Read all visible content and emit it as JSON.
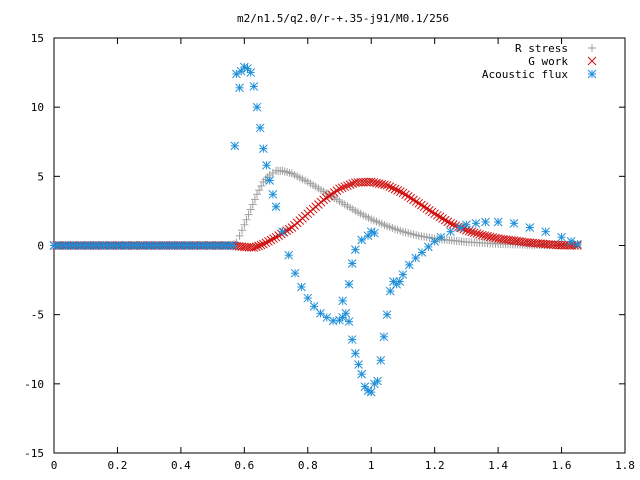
{
  "chart_data": {
    "type": "scatter",
    "title": "m2/n1.5/q2.0/r-+.35-j91/M0.1/256",
    "xlabel": "",
    "ylabel": "",
    "xlim": [
      0,
      1.8
    ],
    "ylim": [
      -15,
      15
    ],
    "grid": false,
    "legend_position": "top-right",
    "x_ticks": [
      "0",
      "0.2",
      "0.4",
      "0.6",
      "0.8",
      "1",
      "1.2",
      "1.4",
      "1.6",
      "1.8"
    ],
    "y_ticks": [
      "15",
      "10",
      "5",
      "0",
      "-5",
      "-10",
      "-15"
    ],
    "series": [
      {
        "name": "R stress",
        "marker": "plus",
        "color": "#a0a0a0",
        "points": [
          [
            0.0,
            0
          ],
          [
            0.56,
            0
          ],
          [
            0.575,
            0.2
          ],
          [
            0.585,
            0.7
          ],
          [
            0.6,
            1.5
          ],
          [
            0.62,
            2.6
          ],
          [
            0.64,
            3.7
          ],
          [
            0.66,
            4.6
          ],
          [
            0.68,
            5.1
          ],
          [
            0.7,
            5.4
          ],
          [
            0.72,
            5.4
          ],
          [
            0.75,
            5.2
          ],
          [
            0.8,
            4.6
          ],
          [
            0.85,
            3.9
          ],
          [
            0.9,
            3.2
          ],
          [
            0.95,
            2.5
          ],
          [
            1.0,
            1.9
          ],
          [
            1.05,
            1.4
          ],
          [
            1.1,
            1.0
          ],
          [
            1.15,
            0.7
          ],
          [
            1.2,
            0.5
          ],
          [
            1.3,
            0.25
          ],
          [
            1.4,
            0.12
          ],
          [
            1.5,
            0.05
          ],
          [
            1.6,
            0.02
          ],
          [
            1.65,
            0.01
          ]
        ]
      },
      {
        "name": "G work",
        "marker": "cross",
        "color": "#d01010",
        "points": [
          [
            0.0,
            0
          ],
          [
            0.56,
            0
          ],
          [
            0.6,
            -0.1
          ],
          [
            0.63,
            -0.15
          ],
          [
            0.66,
            0.1
          ],
          [
            0.7,
            0.6
          ],
          [
            0.75,
            1.3
          ],
          [
            0.8,
            2.3
          ],
          [
            0.85,
            3.3
          ],
          [
            0.9,
            4.1
          ],
          [
            0.95,
            4.55
          ],
          [
            1.0,
            4.6
          ],
          [
            1.05,
            4.35
          ],
          [
            1.1,
            3.8
          ],
          [
            1.15,
            3.05
          ],
          [
            1.2,
            2.3
          ],
          [
            1.25,
            1.6
          ],
          [
            1.3,
            1.1
          ],
          [
            1.35,
            0.75
          ],
          [
            1.4,
            0.5
          ],
          [
            1.45,
            0.35
          ],
          [
            1.5,
            0.2
          ],
          [
            1.55,
            0.1
          ],
          [
            1.6,
            0.02
          ],
          [
            1.65,
            0.0
          ]
        ]
      },
      {
        "name": "Acoustic flux",
        "marker": "star",
        "color": "#1e8fd8",
        "points": [
          [
            0.0,
            0
          ],
          [
            0.565,
            0
          ],
          [
            0.57,
            7.2
          ],
          [
            0.575,
            12.4
          ],
          [
            0.585,
            11.4
          ],
          [
            0.59,
            12.6
          ],
          [
            0.6,
            12.9
          ],
          [
            0.61,
            12.8
          ],
          [
            0.62,
            12.5
          ],
          [
            0.63,
            11.5
          ],
          [
            0.64,
            10.0
          ],
          [
            0.65,
            8.5
          ],
          [
            0.66,
            7.0
          ],
          [
            0.67,
            5.8
          ],
          [
            0.68,
            4.7
          ],
          [
            0.69,
            3.7
          ],
          [
            0.7,
            2.8
          ],
          [
            0.72,
            1.0
          ],
          [
            0.74,
            -0.7
          ],
          [
            0.76,
            -2.0
          ],
          [
            0.78,
            -3.0
          ],
          [
            0.8,
            -3.8
          ],
          [
            0.82,
            -4.4
          ],
          [
            0.84,
            -4.9
          ],
          [
            0.86,
            -5.2
          ],
          [
            0.88,
            -5.45
          ],
          [
            0.9,
            -5.4
          ],
          [
            0.91,
            -5.2
          ],
          [
            0.92,
            -4.9
          ],
          [
            0.93,
            -5.5
          ],
          [
            0.94,
            -6.8
          ],
          [
            0.95,
            -7.8
          ],
          [
            0.96,
            -8.6
          ],
          [
            0.97,
            -9.3
          ],
          [
            0.98,
            -10.2
          ],
          [
            0.99,
            -10.5
          ],
          [
            1.0,
            -10.6
          ],
          [
            1.01,
            -10.0
          ],
          [
            1.02,
            -9.8
          ],
          [
            1.03,
            -8.3
          ],
          [
            1.04,
            -6.6
          ],
          [
            1.05,
            -5.0
          ],
          [
            1.06,
            -3.3
          ],
          [
            1.07,
            -2.6
          ],
          [
            1.08,
            -2.8
          ],
          [
            1.09,
            -2.6
          ],
          [
            1.1,
            -2.1
          ],
          [
            1.12,
            -1.4
          ],
          [
            1.14,
            -0.9
          ],
          [
            1.16,
            -0.5
          ],
          [
            1.18,
            -0.1
          ],
          [
            1.2,
            0.3
          ],
          [
            1.22,
            0.6
          ],
          [
            1.25,
            1.0
          ],
          [
            1.28,
            1.3
          ],
          [
            1.3,
            1.5
          ],
          [
            1.33,
            1.6
          ],
          [
            1.36,
            1.7
          ],
          [
            1.4,
            1.7
          ],
          [
            1.45,
            1.6
          ],
          [
            1.5,
            1.3
          ],
          [
            1.55,
            1.0
          ],
          [
            1.6,
            0.6
          ],
          [
            1.63,
            0.3
          ],
          [
            1.65,
            0.1
          ],
          [
            0.93,
            -2.8
          ],
          [
            0.94,
            -1.3
          ],
          [
            0.95,
            -0.3
          ],
          [
            0.97,
            0.4
          ],
          [
            0.99,
            0.7
          ],
          [
            1.0,
            1.0
          ],
          [
            1.01,
            0.9
          ],
          [
            0.91,
            -4.0
          ]
        ]
      }
    ]
  }
}
